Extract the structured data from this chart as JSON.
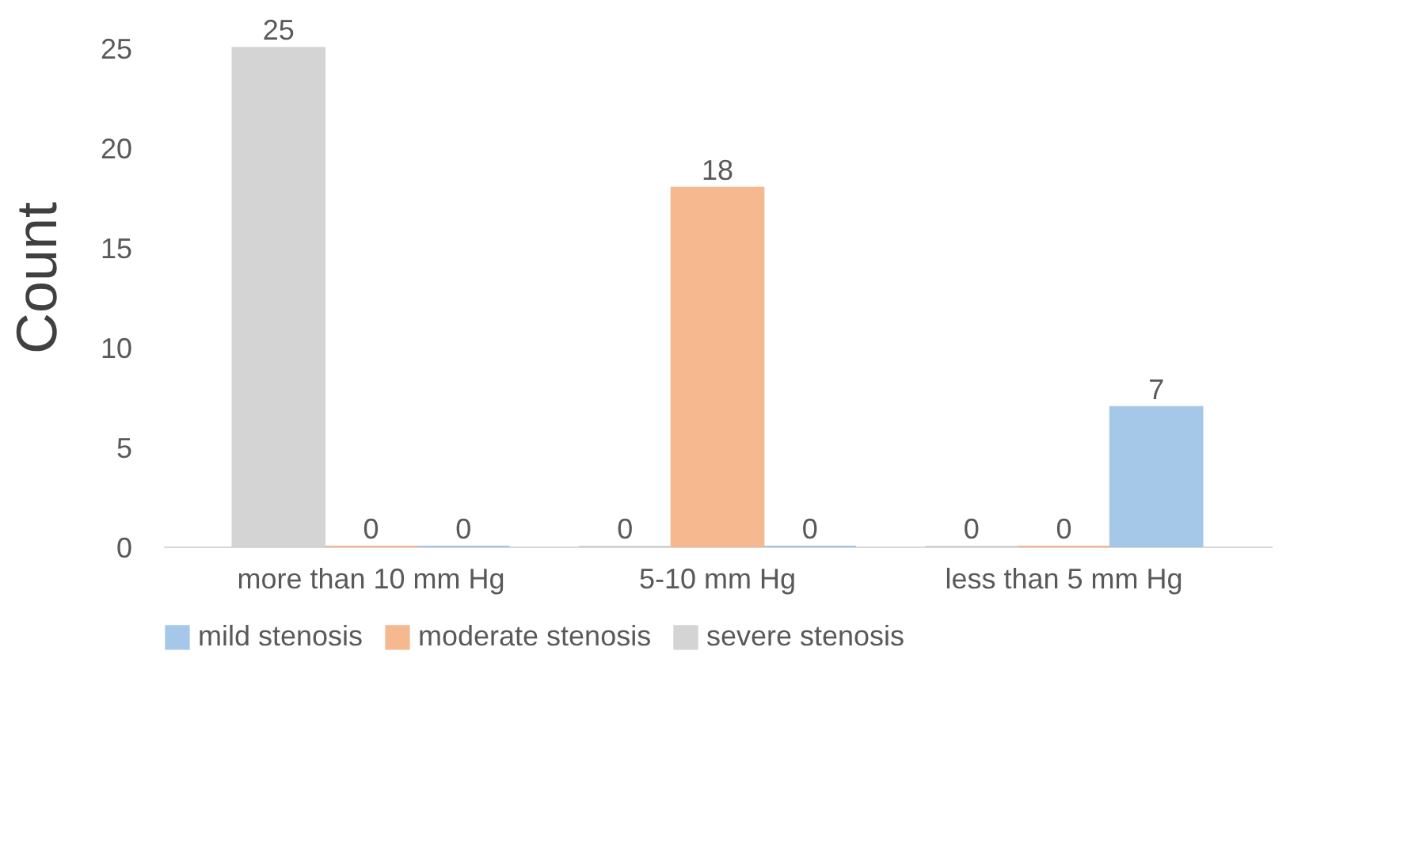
{
  "chart_data": {
    "type": "bar",
    "ylabel": "Count",
    "categories": [
      "more than 10 mm Hg",
      "5-10 mm Hg",
      "less than 5 mm Hg"
    ],
    "series": [
      {
        "name": "mild stenosis",
        "color": "#9dc3e6",
        "values": [
          0,
          0,
          7
        ]
      },
      {
        "name": "moderate stenosis",
        "color": "#f4b183",
        "values": [
          0,
          18,
          0
        ]
      },
      {
        "name": "severe stenosis",
        "color": "#d0d0d0",
        "values": [
          25,
          0,
          0
        ]
      }
    ],
    "ylim": [
      0,
      27
    ],
    "yticks": [
      0,
      5,
      10,
      15,
      20,
      25
    ],
    "grid": false,
    "legend": "bottom",
    "data_labels": true
  }
}
